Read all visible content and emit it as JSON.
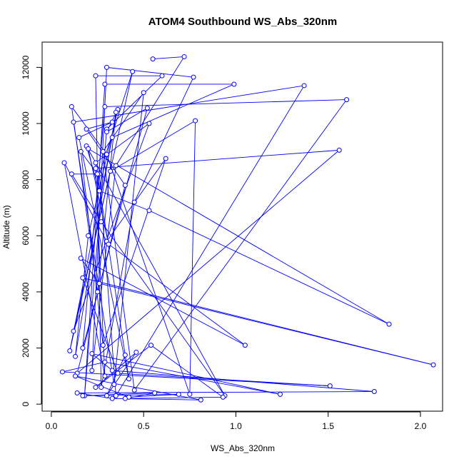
{
  "chart_data": {
    "type": "line",
    "title": "ATOM4 Southbound WS_Abs_320nm",
    "xlabel": "WS_Abs_320nm",
    "ylabel": "Altitude (m)",
    "xlim": [
      -0.05,
      2.12
    ],
    "ylim": [
      -250,
      12900
    ],
    "xticks": [
      0.0,
      0.5,
      1.0,
      1.5,
      2.0
    ],
    "xtick_labels": [
      "0.0",
      "0.5",
      "1.0",
      "1.5",
      "2.0"
    ],
    "yticks": [
      0,
      2000,
      4000,
      6000,
      8000,
      10000,
      12000
    ],
    "ytick_labels": [
      "0",
      "2000",
      "4000",
      "6000",
      "8000",
      "10000",
      "12000"
    ],
    "grid": false,
    "series_color": "#0000ff",
    "series": [
      {
        "marker": "open-circle",
        "points": [
          [
            0.55,
            12300
          ],
          [
            0.72,
            12380
          ],
          [
            0.35,
            8500
          ],
          [
            0.22,
            1200
          ],
          [
            0.3,
            12000
          ],
          [
            0.77,
            11650
          ],
          [
            0.45,
            7200
          ],
          [
            0.27,
            600
          ],
          [
            0.24,
            11700
          ],
          [
            0.6,
            11700
          ],
          [
            0.3,
            9800
          ],
          [
            0.18,
            300
          ],
          [
            0.29,
            11400
          ],
          [
            0.99,
            11400
          ],
          [
            0.33,
            9500
          ],
          [
            0.1,
            1900
          ],
          [
            0.44,
            11850
          ],
          [
            0.26,
            8200
          ],
          [
            0.35,
            300
          ],
          [
            1.37,
            11350
          ],
          [
            0.12,
            10050
          ],
          [
            0.34,
            700
          ],
          [
            0.5,
            11100
          ],
          [
            0.28,
            9000
          ],
          [
            0.45,
            500
          ],
          [
            1.6,
            10850
          ],
          [
            0.29,
            10600
          ],
          [
            0.17,
            2000
          ],
          [
            0.52,
            10550
          ],
          [
            0.3,
            9700
          ],
          [
            0.36,
            10500
          ],
          [
            0.2,
            6000
          ],
          [
            0.13,
            1700
          ],
          [
            0.35,
            10400
          ],
          [
            0.25,
            4000
          ],
          [
            0.11,
            10600
          ],
          [
            0.3,
            8900
          ],
          [
            0.75,
            350
          ],
          [
            0.78,
            10100
          ],
          [
            0.32,
            8300
          ],
          [
            0.12,
            2600
          ],
          [
            0.53,
            10000
          ],
          [
            0.24,
            8600
          ],
          [
            0.42,
            900
          ],
          [
            0.15,
            9500
          ],
          [
            0.33,
            10050
          ],
          [
            0.19,
            9800
          ],
          [
            0.4,
            7800
          ],
          [
            0.14,
            1100
          ],
          [
            1.56,
            9050
          ],
          [
            0.24,
            8400
          ],
          [
            0.29,
            1000
          ],
          [
            0.07,
            8600
          ],
          [
            0.3,
            5800
          ],
          [
            0.62,
            8750
          ],
          [
            0.28,
            2100
          ],
          [
            0.16,
            9000
          ],
          [
            0.25,
            8200
          ],
          [
            0.11,
            8200
          ],
          [
            0.27,
            6500
          ],
          [
            0.94,
            300
          ],
          [
            0.19,
            9200
          ],
          [
            0.26,
            7600
          ],
          [
            0.53,
            6900
          ],
          [
            1.83,
            2850
          ],
          [
            0.2,
            9100
          ],
          [
            0.31,
            5700
          ],
          [
            1.05,
            2100
          ],
          [
            0.16,
            5200
          ],
          [
            0.26,
            4300
          ],
          [
            2.07,
            1400
          ],
          [
            0.17,
            4500
          ],
          [
            0.36,
            1100
          ],
          [
            1.51,
            650
          ],
          [
            0.06,
            1150
          ],
          [
            0.29,
            1500
          ],
          [
            1.24,
            350
          ],
          [
            0.22,
            1800
          ],
          [
            0.33,
            1200
          ],
          [
            1.75,
            450
          ],
          [
            0.14,
            400
          ],
          [
            0.33,
            200
          ],
          [
            0.81,
            150
          ],
          [
            0.13,
            1000
          ],
          [
            0.42,
            250
          ],
          [
            0.69,
            350
          ],
          [
            0.17,
            300
          ],
          [
            0.56,
            400
          ],
          [
            0.4,
            200
          ],
          [
            0.93,
            250
          ],
          [
            0.54,
            2100
          ],
          [
            0.24,
            600
          ],
          [
            0.46,
            1850
          ],
          [
            0.3,
            300
          ],
          [
            0.4,
            1750
          ]
        ]
      }
    ]
  }
}
